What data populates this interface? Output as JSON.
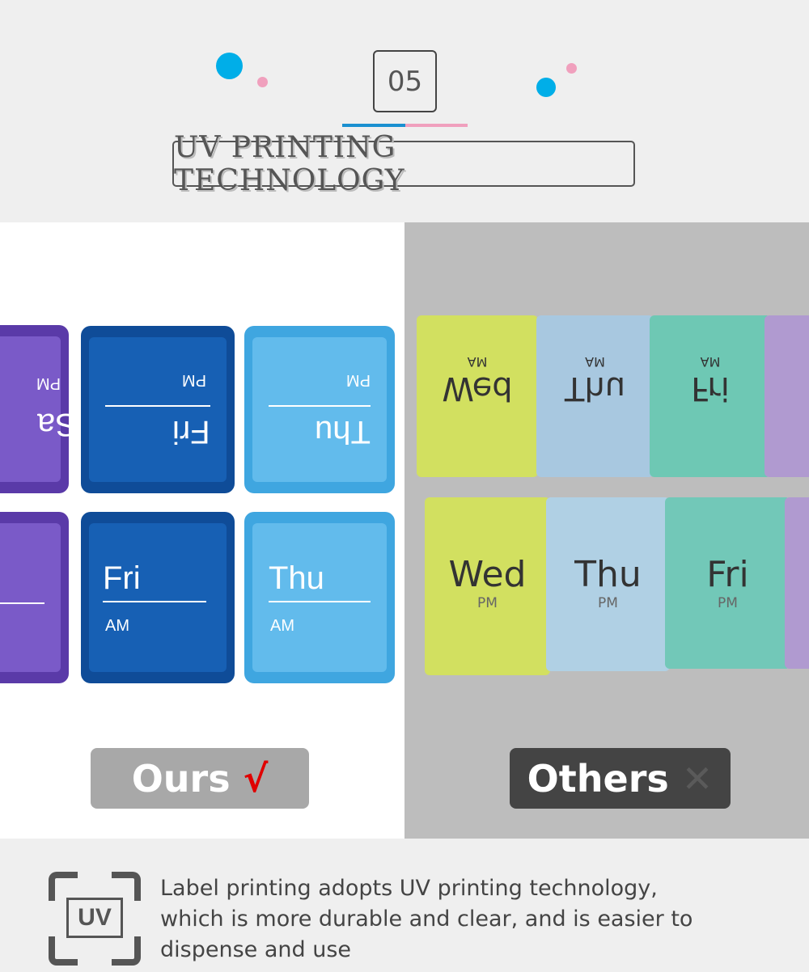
{
  "header": {
    "number": "05",
    "title": "UV PRINTING TECHNOLOGY"
  },
  "colors": {
    "accent_blue": "#00aee8",
    "accent_pink": "#f0a0bd",
    "dark_blue": "#1457a8",
    "light_blue": "#5cb8ea",
    "purple": "#6a48b5",
    "wrong": "#555555",
    "check": "#e00000"
  },
  "ours": {
    "top_row": [
      {
        "day": "Sa",
        "time": "PM"
      },
      {
        "day": "Fri",
        "time": "PM"
      },
      {
        "day": "Thu",
        "time": "PM"
      }
    ],
    "bottom_row": [
      {
        "day": "Fri",
        "time": "AM"
      },
      {
        "day": "Thu",
        "time": "AM"
      }
    ],
    "label": "Ours",
    "mark": "√"
  },
  "others": {
    "top_row": [
      {
        "day": "Wed",
        "time": "AM"
      },
      {
        "day": "Thu",
        "time": "AM"
      },
      {
        "day": "Fri",
        "time": "AM"
      }
    ],
    "bottom_row": [
      {
        "day": "Wed",
        "time": "PM"
      },
      {
        "day": "Thu",
        "time": "PM"
      },
      {
        "day": "Fri",
        "time": "PM"
      }
    ],
    "label": "Others",
    "mark": "✕"
  },
  "footer": {
    "icon_text": "UV",
    "description": "Label printing adopts UV printing technology, which is more durable and clear, and is easier to dispense and use"
  }
}
